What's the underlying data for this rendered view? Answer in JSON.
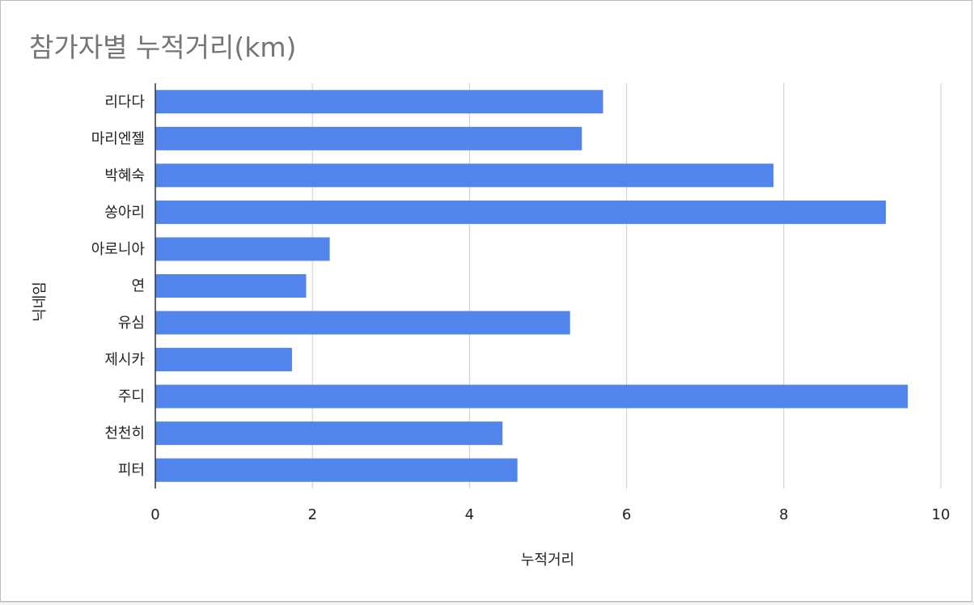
{
  "chart_data": {
    "type": "bar",
    "orientation": "horizontal",
    "title": "참가자별 누적거리(km)",
    "xlabel": "누적거리",
    "ylabel": "닉네임",
    "categories": [
      "리다다",
      "마리엔젤",
      "박혜숙",
      "쏭아리",
      "아로니아",
      "연",
      "유심",
      "제시카",
      "주디",
      "천천히",
      "피터"
    ],
    "values": [
      5.7,
      5.43,
      7.87,
      9.3,
      2.22,
      1.92,
      5.28,
      1.74,
      9.58,
      4.42,
      4.61
    ],
    "xlim": [
      0,
      10
    ],
    "xticks": [
      "0",
      "2",
      "4",
      "6",
      "8",
      "10"
    ],
    "grid": "vertical",
    "legend": "none",
    "bar_color": "#5185ec"
  }
}
